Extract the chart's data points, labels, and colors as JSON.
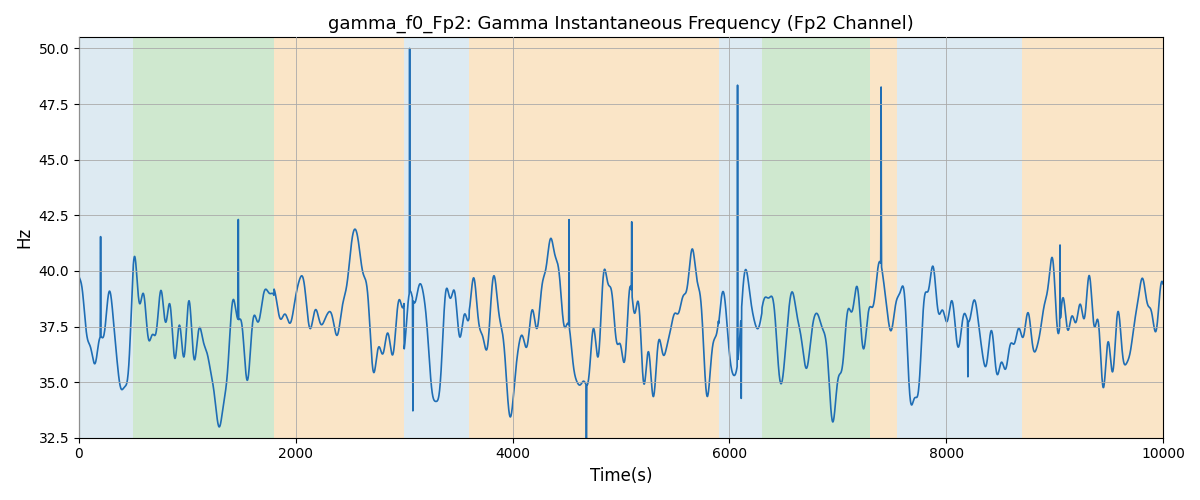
{
  "title": "gamma_f0_Fp2: Gamma Instantaneous Frequency (Fp2 Channel)",
  "xlabel": "Time(s)",
  "ylabel": "Hz",
  "xlim": [
    0,
    10000
  ],
  "ylim": [
    32.5,
    50.5
  ],
  "yticks": [
    32.5,
    35.0,
    37.5,
    40.0,
    42.5,
    45.0,
    47.5,
    50.0
  ],
  "xticks": [
    0,
    2000,
    4000,
    6000,
    8000,
    10000
  ],
  "line_color": "#1f6eb5",
  "line_width": 1.2,
  "background_color": "#ffffff",
  "grid_color": "#aaaaaa",
  "bands": [
    {
      "xstart": 0,
      "xend": 500,
      "color": "#b0cfe0",
      "alpha": 0.42
    },
    {
      "xstart": 500,
      "xend": 1800,
      "color": "#8ec98e",
      "alpha": 0.42
    },
    {
      "xstart": 1800,
      "xend": 3000,
      "color": "#f5c98a",
      "alpha": 0.48
    },
    {
      "xstart": 3000,
      "xend": 3600,
      "color": "#b0cfe0",
      "alpha": 0.42
    },
    {
      "xstart": 3600,
      "xend": 5900,
      "color": "#f5c98a",
      "alpha": 0.48
    },
    {
      "xstart": 5900,
      "xend": 6300,
      "color": "#b0cfe0",
      "alpha": 0.42
    },
    {
      "xstart": 6300,
      "xend": 7300,
      "color": "#8ec98e",
      "alpha": 0.42
    },
    {
      "xstart": 7300,
      "xend": 7550,
      "color": "#f5c98a",
      "alpha": 0.48
    },
    {
      "xstart": 7550,
      "xend": 8700,
      "color": "#b0cfe0",
      "alpha": 0.42
    },
    {
      "xstart": 8700,
      "xend": 10000,
      "color": "#f5c98a",
      "alpha": 0.48
    }
  ]
}
